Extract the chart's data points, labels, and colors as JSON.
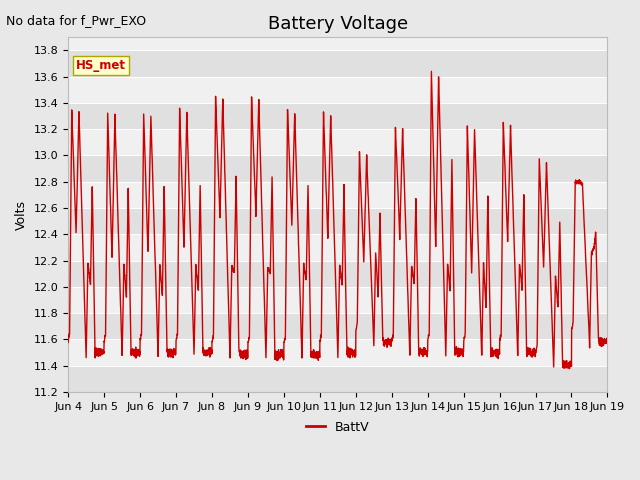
{
  "title": "Battery Voltage",
  "ylabel": "Volts",
  "note": "No data for f_Pwr_EXO",
  "legend_label": "BattV",
  "hs_met_label": "HS_met",
  "ylim": [
    11.2,
    13.9
  ],
  "yticks": [
    11.2,
    11.4,
    11.6,
    11.8,
    12.0,
    12.2,
    12.4,
    12.6,
    12.8,
    13.0,
    13.2,
    13.4,
    13.6,
    13.8
  ],
  "xtick_labels": [
    "Jun 4",
    "Jun 5",
    "Jun 6",
    "Jun 7",
    "Jun 8",
    "Jun 9",
    "Jun 10",
    "Jun 11",
    "Jun 12",
    "Jun 13",
    "Jun 14",
    "Jun 15",
    "Jun 16",
    "Jun 17",
    "Jun 18",
    "Jun 19"
  ],
  "line_color": "#cc0000",
  "line_width": 1.0,
  "fig_bg": "#e8e8e8",
  "plot_bg": "#f0f0f0",
  "grid_color": "#ffffff",
  "title_fontsize": 13,
  "label_fontsize": 9,
  "tick_fontsize": 8,
  "note_fontsize": 9,
  "hs_met_box_color": "#ffffcc",
  "hs_met_border_color": "#aaa800",
  "hs_met_text_color": "#cc0000",
  "days": 15,
  "day_peaks": [
    13.35,
    13.32,
    13.32,
    13.36,
    13.44,
    13.44,
    13.35,
    13.33,
    13.03,
    13.22,
    13.64,
    13.22,
    13.25,
    12.98,
    12.8
  ],
  "day_mins": [
    11.47,
    11.47,
    11.47,
    11.47,
    11.46,
    11.45,
    11.45,
    11.47,
    11.55,
    11.47,
    11.47,
    11.47,
    11.47,
    11.38,
    11.55
  ],
  "day_mid_peaks": [
    12.4,
    12.22,
    12.25,
    12.3,
    12.53,
    12.55,
    12.47,
    12.38,
    12.19,
    12.38,
    12.3,
    12.1,
    12.35,
    12.15,
    12.8
  ],
  "day_second_peaks": [
    13.33,
    13.3,
    13.3,
    13.33,
    13.43,
    13.43,
    13.33,
    13.3,
    13.0,
    13.2,
    13.6,
    13.2,
    13.22,
    12.95,
    12.78
  ]
}
